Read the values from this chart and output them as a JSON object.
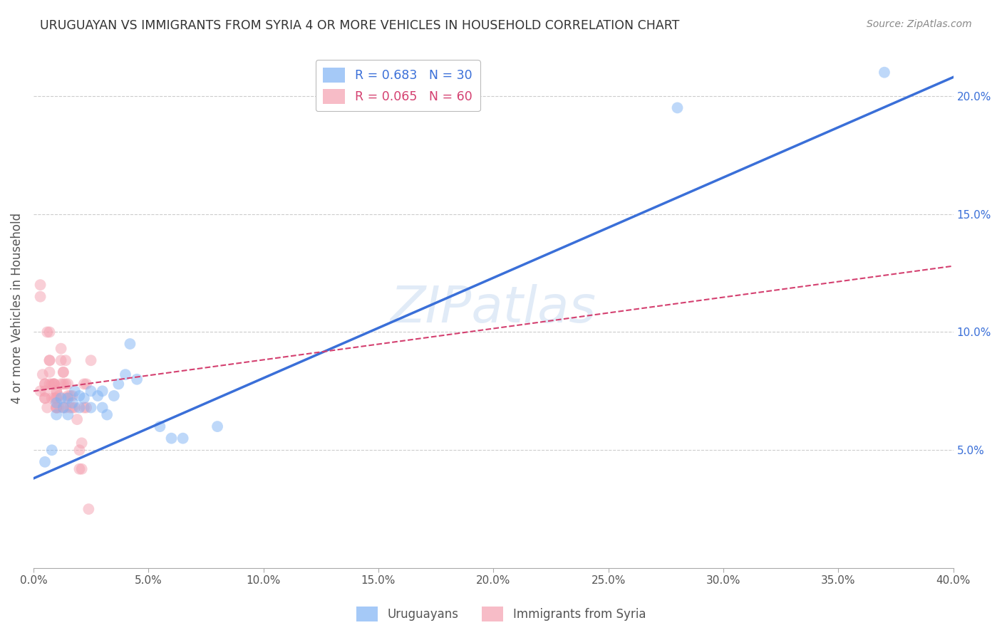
{
  "title": "URUGUAYAN VS IMMIGRANTS FROM SYRIA 4 OR MORE VEHICLES IN HOUSEHOLD CORRELATION CHART",
  "source": "Source: ZipAtlas.com",
  "ylabel": "4 or more Vehicles in Household",
  "x_min": 0.0,
  "x_max": 0.4,
  "y_min": 0.0,
  "y_max": 0.22,
  "x_ticks": [
    0.0,
    0.05,
    0.1,
    0.15,
    0.2,
    0.25,
    0.3,
    0.35,
    0.4
  ],
  "x_tick_labels": [
    "0.0%",
    "5.0%",
    "10.0%",
    "15.0%",
    "20.0%",
    "25.0%",
    "30.0%",
    "35.0%",
    "40.0%"
  ],
  "y_ticks": [
    0.05,
    0.1,
    0.15,
    0.2
  ],
  "y_tick_labels": [
    "5.0%",
    "10.0%",
    "15.0%",
    "20.0%"
  ],
  "legend1_label": "R = 0.683   N = 30",
  "legend2_label": "R = 0.065   N = 60",
  "legend1_color": "#7fb3f5",
  "legend2_color": "#f5a0b0",
  "uruguayan_color": "#7fb3f5",
  "syria_color": "#f5a0b0",
  "uruguayan_line_color": "#3a6fd8",
  "syria_line_color": "#d44070",
  "watermark": "ZIPatlas",
  "background_color": "#ffffff",
  "grid_color": "#cccccc",
  "uruguayan_x": [
    0.005,
    0.008,
    0.01,
    0.01,
    0.012,
    0.013,
    0.015,
    0.015,
    0.017,
    0.018,
    0.02,
    0.02,
    0.022,
    0.025,
    0.025,
    0.028,
    0.03,
    0.03,
    0.032,
    0.035,
    0.037,
    0.04,
    0.042,
    0.045,
    0.055,
    0.06,
    0.065,
    0.08,
    0.28,
    0.37
  ],
  "uruguayan_y": [
    0.045,
    0.05,
    0.065,
    0.07,
    0.072,
    0.068,
    0.072,
    0.065,
    0.07,
    0.075,
    0.068,
    0.073,
    0.072,
    0.075,
    0.068,
    0.073,
    0.075,
    0.068,
    0.065,
    0.073,
    0.078,
    0.082,
    0.095,
    0.08,
    0.06,
    0.055,
    0.055,
    0.06,
    0.195,
    0.21
  ],
  "syria_x": [
    0.003,
    0.003,
    0.003,
    0.004,
    0.005,
    0.005,
    0.005,
    0.005,
    0.005,
    0.006,
    0.006,
    0.007,
    0.007,
    0.007,
    0.007,
    0.007,
    0.008,
    0.008,
    0.009,
    0.009,
    0.009,
    0.009,
    0.01,
    0.01,
    0.01,
    0.01,
    0.01,
    0.01,
    0.01,
    0.011,
    0.011,
    0.012,
    0.012,
    0.012,
    0.013,
    0.013,
    0.013,
    0.013,
    0.014,
    0.014,
    0.014,
    0.014,
    0.015,
    0.015,
    0.016,
    0.016,
    0.017,
    0.017,
    0.018,
    0.019,
    0.02,
    0.02,
    0.021,
    0.021,
    0.022,
    0.022,
    0.023,
    0.023,
    0.024,
    0.025
  ],
  "syria_y": [
    0.115,
    0.12,
    0.075,
    0.082,
    0.078,
    0.078,
    0.075,
    0.072,
    0.072,
    0.068,
    0.1,
    0.1,
    0.088,
    0.088,
    0.083,
    0.078,
    0.078,
    0.072,
    0.078,
    0.078,
    0.078,
    0.072,
    0.075,
    0.075,
    0.072,
    0.068,
    0.068,
    0.072,
    0.068,
    0.073,
    0.068,
    0.093,
    0.088,
    0.078,
    0.083,
    0.083,
    0.078,
    0.068,
    0.088,
    0.078,
    0.072,
    0.068,
    0.078,
    0.073,
    0.073,
    0.068,
    0.073,
    0.068,
    0.068,
    0.063,
    0.05,
    0.042,
    0.053,
    0.042,
    0.068,
    0.078,
    0.068,
    0.078,
    0.025,
    0.088
  ],
  "uruguayan_line_x0": 0.0,
  "uruguayan_line_y0": 0.038,
  "uruguayan_line_x1": 0.4,
  "uruguayan_line_y1": 0.208,
  "syria_line_x0": 0.0,
  "syria_line_y0": 0.075,
  "syria_line_x1": 0.4,
  "syria_line_y1": 0.128
}
